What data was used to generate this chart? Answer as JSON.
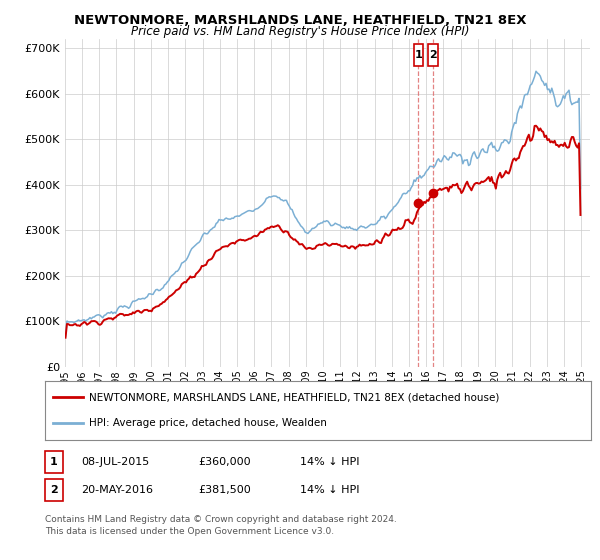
{
  "title": "NEWTONMORE, MARSHLANDS LANE, HEATHFIELD, TN21 8EX",
  "subtitle": "Price paid vs. HM Land Registry's House Price Index (HPI)",
  "legend_line1": "NEWTONMORE, MARSHLANDS LANE, HEATHFIELD, TN21 8EX (detached house)",
  "legend_line2": "HPI: Average price, detached house, Wealden",
  "transactions": [
    {
      "label": "1",
      "date": "08-JUL-2015",
      "price": "£360,000",
      "pct": "14% ↓ HPI",
      "year": 2015,
      "month": 7,
      "value": 360000
    },
    {
      "label": "2",
      "date": "20-MAY-2016",
      "price": "£381,500",
      "pct": "14% ↓ HPI",
      "year": 2016,
      "month": 5,
      "value": 381500
    }
  ],
  "footnote1": "Contains HM Land Registry data © Crown copyright and database right 2024.",
  "footnote2": "This data is licensed under the Open Government Licence v3.0.",
  "hpi_color": "#7bafd4",
  "price_color": "#cc0000",
  "background_color": "#ffffff",
  "grid_color": "#cccccc",
  "marker_fill": "#cc0000",
  "vline_color": "#dd6666",
  "ylim": [
    0,
    720000
  ],
  "yticks": [
    0,
    100000,
    200000,
    300000,
    400000,
    500000,
    600000,
    700000
  ],
  "xmin": 1995,
  "xmax": 2025.5
}
